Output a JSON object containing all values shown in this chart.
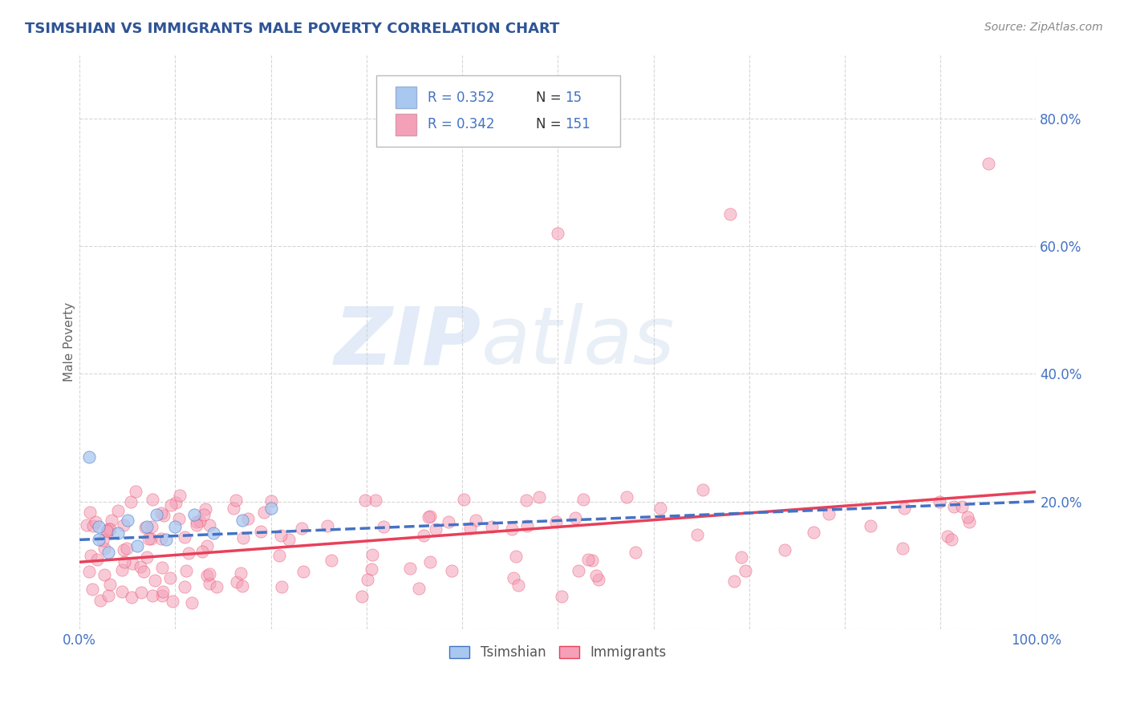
{
  "title": "TSIMSHIAN VS IMMIGRANTS MALE POVERTY CORRELATION CHART",
  "source_text": "Source: ZipAtlas.com",
  "ylabel": "Male Poverty",
  "legend_r1": "R = 0.352",
  "legend_n1": "N =  15",
  "legend_r2": "R = 0.342",
  "legend_n2": "N = 151",
  "tsimshian_color": "#a8c8f0",
  "immigrants_color": "#f4a0b8",
  "tsimshian_line_color": "#4472c4",
  "immigrants_line_color": "#e8405a",
  "title_color": "#2F5496",
  "legend_text_color_blue": "#4472c4",
  "legend_text_color_black": "#333333",
  "background_color": "#ffffff",
  "grid_color": "#cccccc",
  "axis_label_color": "#666666",
  "tick_label_color": "#4472c4",
  "source_color": "#888888",
  "bottom_label_color": "#555555",
  "xlim": [
    0.0,
    1.0
  ],
  "ylim": [
    0.0,
    0.9
  ],
  "marker_size": 120,
  "marker_alpha": 0.55,
  "line_width": 2.5,
  "watermark_zip": "ZIP",
  "watermark_atlas": "atlas",
  "watermark_fontsize": 72
}
